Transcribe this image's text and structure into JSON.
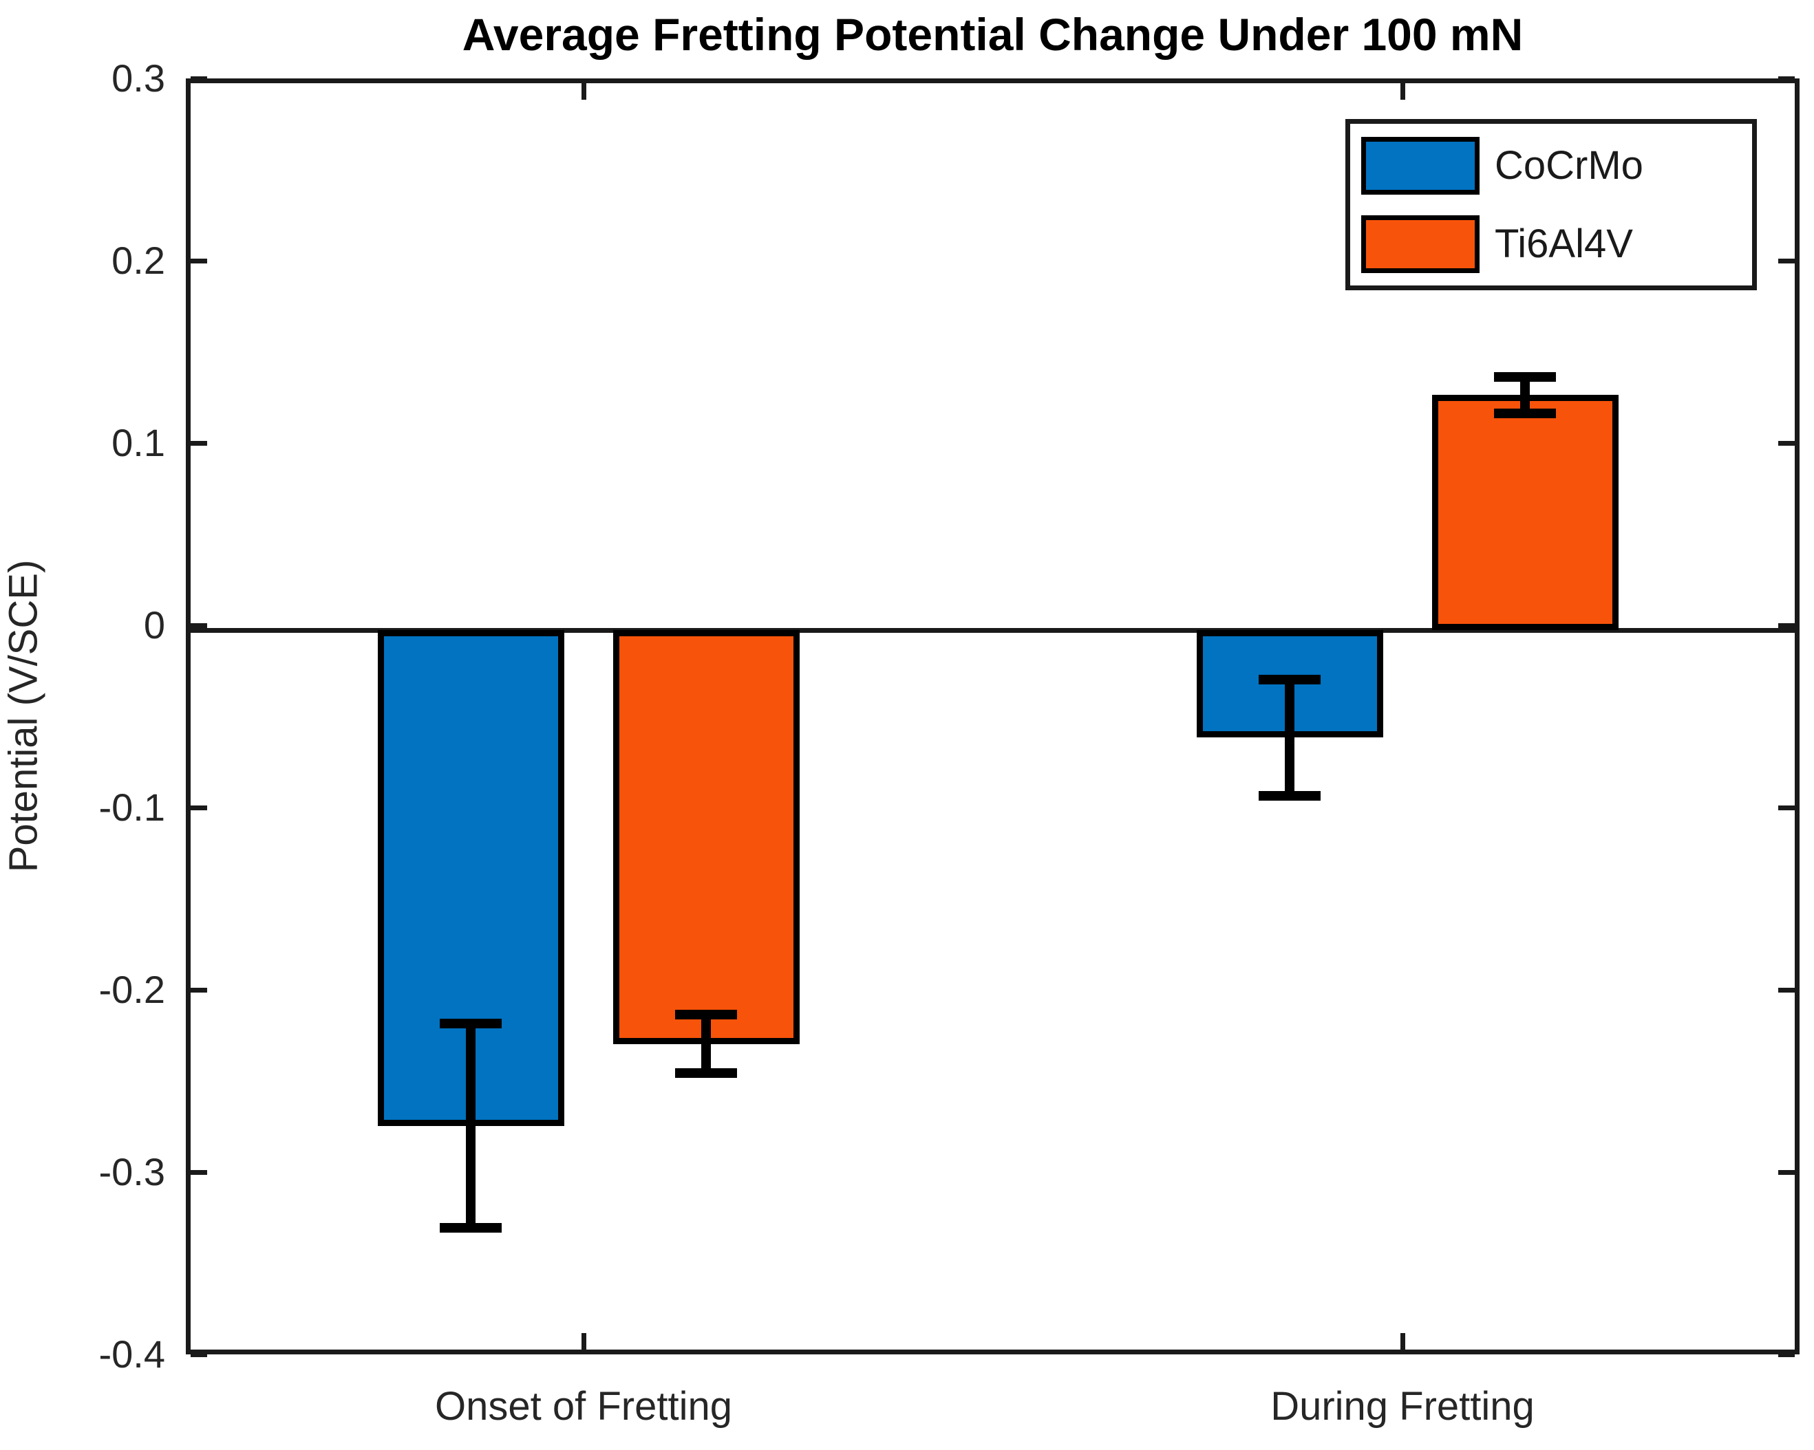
{
  "chart_data": {
    "type": "bar",
    "title": "Average Fretting Potential Change Under 100 mN",
    "categories": [
      "Onset of Fretting",
      "During Fretting"
    ],
    "series": [
      {
        "name": "CoCrMo",
        "color": "#0173C1",
        "values": [
          -0.272,
          -0.059
        ],
        "errors": [
          0.056,
          0.032
        ]
      },
      {
        "name": "Ti6Al4V",
        "color": "#F8530A",
        "values": [
          -0.227,
          0.129
        ],
        "errors": [
          0.016,
          0.01
        ]
      }
    ],
    "xlabel": "",
    "ylabel": "Potential (V/SCE)",
    "ylim": [
      -0.4,
      0.3
    ],
    "yticks": [
      0.3,
      0.2,
      0.1,
      0,
      -0.1,
      -0.2,
      -0.3,
      -0.4
    ],
    "ytick_labels": [
      "0.3",
      "0.2",
      "0.1",
      "0",
      "-0.1",
      "-0.2",
      "-0.3",
      "-0.4"
    ],
    "grid": false,
    "error_bars": true,
    "legend_position": "top-right",
    "axis_color": "#1a1a1a",
    "text_color": "#262626"
  },
  "legend": {
    "items": [
      {
        "label": "CoCrMo"
      },
      {
        "label": "Ti6Al4V"
      }
    ]
  }
}
